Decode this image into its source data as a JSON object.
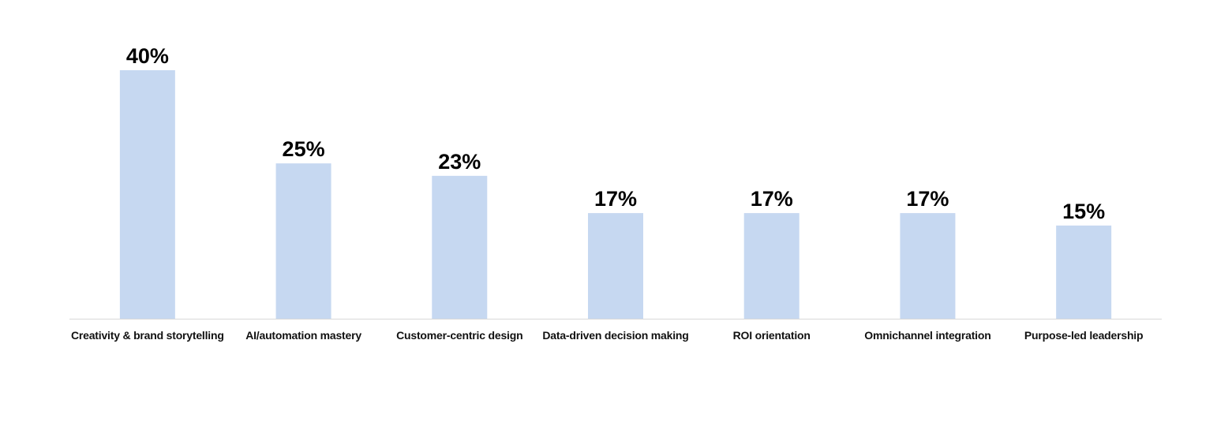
{
  "chart_data": {
    "type": "bar",
    "categories": [
      "Creativity & brand storytelling",
      "AI/automation mastery",
      "Customer-centric design",
      "Data-driven decision making",
      "ROI orientation",
      "Omnichannel integration",
      "Purpose-led leadership"
    ],
    "values": [
      40,
      25,
      23,
      17,
      17,
      17,
      15
    ],
    "value_labels": [
      "40%",
      "25%",
      "23%",
      "17%",
      "17%",
      "17%",
      "15%"
    ],
    "color": "#c6d8f1",
    "ylim": [
      0,
      40
    ]
  }
}
